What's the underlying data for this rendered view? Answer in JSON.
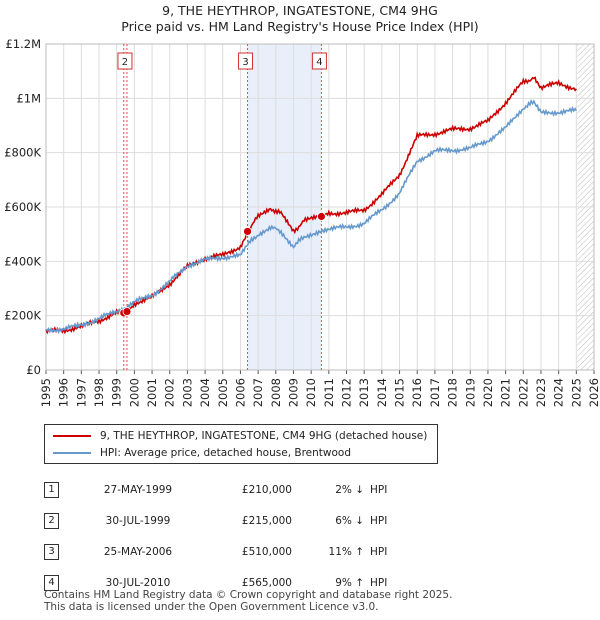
{
  "title": "9, THE HEYTHROP, INGATESTONE, CM4 9HG",
  "subtitle": "Price paid vs. HM Land Registry's House Price Index (HPI)",
  "chart_data": {
    "type": "line",
    "x_range": [
      1995,
      2026
    ],
    "ylim": [
      0,
      1200000
    ],
    "y_ticks": [
      {
        "value": 0,
        "label": "£0"
      },
      {
        "value": 200000,
        "label": "£200K"
      },
      {
        "value": 400000,
        "label": "£400K"
      },
      {
        "value": 600000,
        "label": "£600K"
      },
      {
        "value": 800000,
        "label": "£800K"
      },
      {
        "value": 1000000,
        "label": "£1M"
      },
      {
        "value": 1200000,
        "label": "£1.2M"
      }
    ],
    "x_ticks": [
      "1995",
      "1996",
      "1997",
      "1998",
      "1999",
      "2000",
      "2001",
      "2002",
      "2003",
      "2004",
      "2005",
      "2006",
      "2007",
      "2008",
      "2009",
      "2010",
      "2011",
      "2012",
      "2013",
      "2014",
      "2015",
      "2016",
      "2017",
      "2018",
      "2019",
      "2020",
      "2021",
      "2022",
      "2023",
      "2024",
      "2025",
      "2026"
    ],
    "grid": true,
    "shaded_period": [
      2006.4,
      2010.58
    ],
    "forecast_start": 2025.05,
    "series": [
      {
        "name": "9, THE HEYTHROP, INGATESTONE, CM4 9HG (detached house)",
        "color": "#cc0000",
        "points": [
          [
            1995,
            142000
          ],
          [
            1996,
            146000
          ],
          [
            1997,
            160000
          ],
          [
            1998,
            182000
          ],
          [
            1999,
            210000
          ],
          [
            1999.58,
            215000
          ],
          [
            2000,
            245000
          ],
          [
            2001,
            268000
          ],
          [
            2002,
            318000
          ],
          [
            2003,
            380000
          ],
          [
            2004,
            412000
          ],
          [
            2005,
            422000
          ],
          [
            2006,
            455000
          ],
          [
            2006.4,
            510000
          ],
          [
            2007,
            565000
          ],
          [
            2007.7,
            595000
          ],
          [
            2008.3,
            575000
          ],
          [
            2009.0,
            510000
          ],
          [
            2009.6,
            548000
          ],
          [
            2010.58,
            565000
          ],
          [
            2011,
            578000
          ],
          [
            2012,
            578000
          ],
          [
            2013,
            590000
          ],
          [
            2014,
            645000
          ],
          [
            2015,
            720000
          ],
          [
            2016,
            860000
          ],
          [
            2017,
            870000
          ],
          [
            2018,
            885000
          ],
          [
            2019,
            890000
          ],
          [
            2020,
            915000
          ],
          [
            2021,
            985000
          ],
          [
            2022,
            1060000
          ],
          [
            2022.6,
            1075000
          ],
          [
            2023,
            1040000
          ],
          [
            2024,
            1055000
          ],
          [
            2025,
            1035000
          ]
        ]
      },
      {
        "name": "HPI: Average price, detached house, Brentwood",
        "color": "#6699cc",
        "points": [
          [
            1995,
            147000
          ],
          [
            1996,
            151000
          ],
          [
            1997,
            165000
          ],
          [
            1998,
            190000
          ],
          [
            1999,
            215000
          ],
          [
            2000,
            250000
          ],
          [
            2001,
            275000
          ],
          [
            2002,
            325000
          ],
          [
            2003,
            385000
          ],
          [
            2004,
            405000
          ],
          [
            2005,
            415000
          ],
          [
            2006,
            420000
          ],
          [
            2006.4,
            460000
          ],
          [
            2007,
            500000
          ],
          [
            2007.7,
            525000
          ],
          [
            2008.3,
            510000
          ],
          [
            2009.0,
            455000
          ],
          [
            2009.6,
            490000
          ],
          [
            2010.58,
            515000
          ],
          [
            2011,
            520000
          ],
          [
            2012,
            525000
          ],
          [
            2013,
            540000
          ],
          [
            2014,
            590000
          ],
          [
            2015,
            650000
          ],
          [
            2016,
            770000
          ],
          [
            2017,
            805000
          ],
          [
            2018,
            810000
          ],
          [
            2019,
            815000
          ],
          [
            2020,
            845000
          ],
          [
            2021,
            890000
          ],
          [
            2022,
            965000
          ],
          [
            2022.6,
            985000
          ],
          [
            2023,
            945000
          ],
          [
            2024,
            950000
          ],
          [
            2025,
            955000
          ]
        ]
      }
    ],
    "sales": [
      {
        "id": "1",
        "x": 1999.4,
        "value": 210000
      },
      {
        "id": "2",
        "x": 1999.58,
        "value": 215000
      },
      {
        "id": "3",
        "x": 2006.4,
        "value": 510000
      },
      {
        "id": "4",
        "x": 2010.58,
        "value": 565000
      }
    ],
    "chart_labels": [
      "2",
      "3",
      "4"
    ]
  },
  "legend": {
    "red_label": "9, THE HEYTHROP, INGATESTONE, CM4 9HG (detached house)",
    "blue_label": "HPI: Average price, detached house, Brentwood"
  },
  "table": [
    {
      "id": "1",
      "date": "27-MAY-1999",
      "price": "£210,000",
      "pct": "2% ↓",
      "hpi": "HPI"
    },
    {
      "id": "2",
      "date": "30-JUL-1999",
      "price": "£215,000",
      "pct": "6% ↓",
      "hpi": "HPI"
    },
    {
      "id": "3",
      "date": "25-MAY-2006",
      "price": "£510,000",
      "pct": "11% ↑",
      "hpi": "HPI"
    },
    {
      "id": "4",
      "date": "30-JUL-2010",
      "price": "£565,000",
      "pct": "9% ↑",
      "hpi": "HPI"
    }
  ],
  "footer": {
    "line1": "Contains HM Land Registry data © Crown copyright and database right 2025.",
    "line2": "This data is licensed under the Open Government Licence v3.0."
  },
  "colors": {
    "red": "#cc0000",
    "blue": "#6699cc",
    "shade": "#e8eefa"
  }
}
